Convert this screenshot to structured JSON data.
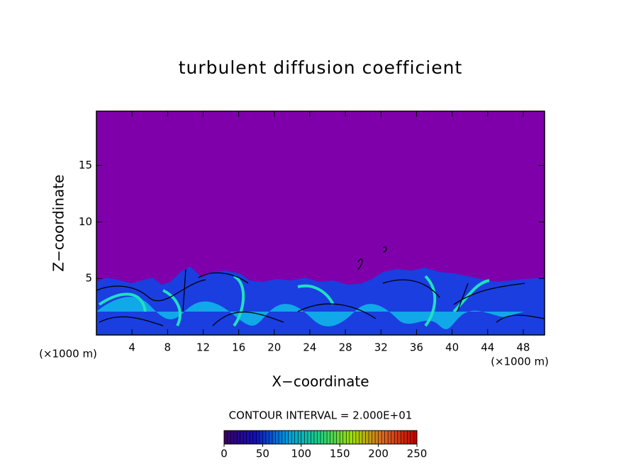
{
  "chart_data": {
    "type": "contour",
    "title": "turbulent diffusion coefficient",
    "xlabel": "X−coordinate",
    "ylabel": "Z−coordinate",
    "x_unit": "(×1000 m)",
    "y_unit": "(×1000 m)",
    "xlim": [
      0,
      50.4
    ],
    "ylim": [
      0,
      19.8
    ],
    "xticks": [
      4,
      8,
      12,
      16,
      20,
      24,
      28,
      32,
      36,
      40,
      44,
      48
    ],
    "yticks": [
      5,
      10,
      15
    ],
    "background_color": "#7f00aa",
    "colorbar": {
      "title": "CONTOUR INTERVAL = 2.000E+01",
      "lim": [
        0,
        250
      ],
      "ticks": [
        0,
        50,
        100,
        150,
        200,
        250
      ],
      "colors": [
        "#3a0060",
        "#1010c0",
        "#00a0e0",
        "#20d080",
        "#a0e000",
        "#e06020",
        "#c00000"
      ]
    }
  }
}
